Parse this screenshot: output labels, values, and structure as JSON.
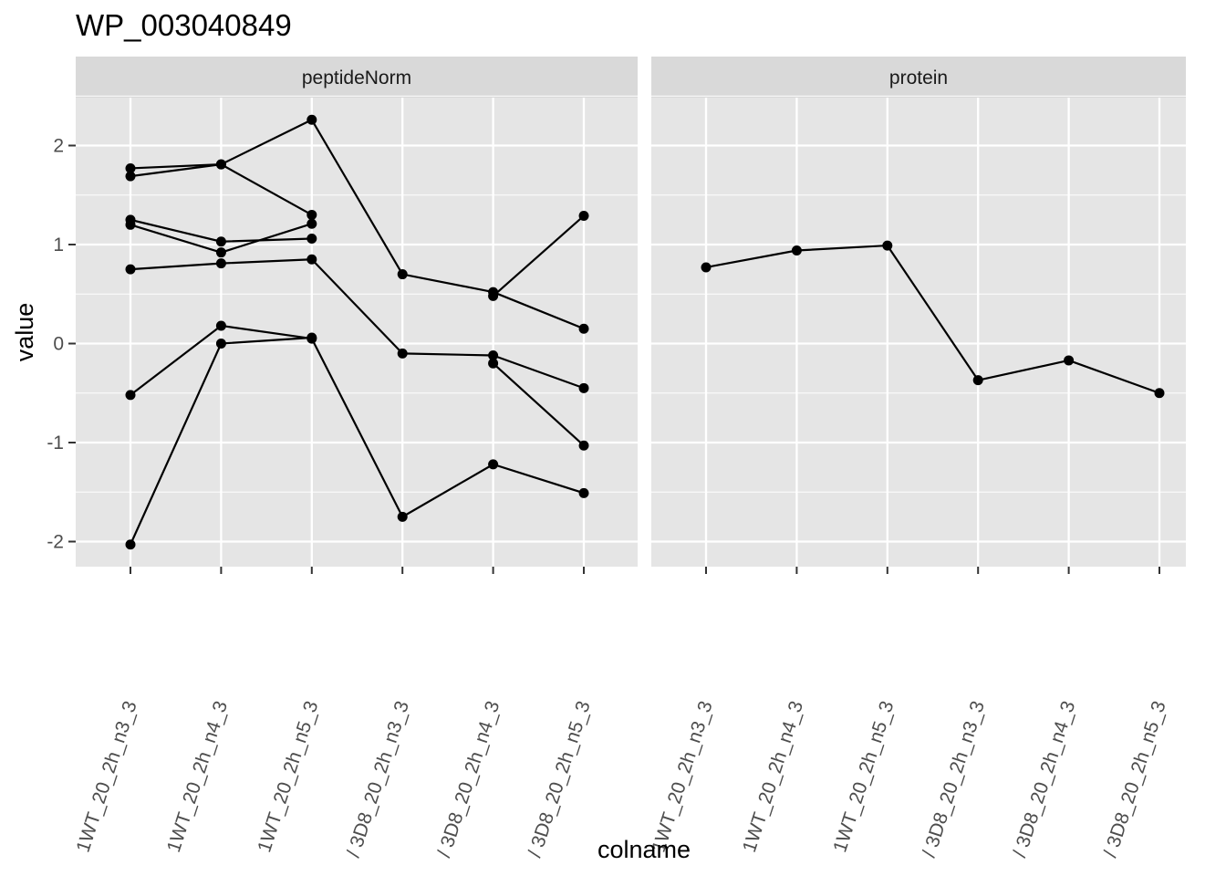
{
  "chart_data": {
    "type": "line",
    "title": "WP_003040849",
    "xlabel": "colname",
    "ylabel": "value",
    "ylim": [
      -2.25,
      2.5
    ],
    "y_ticks": [
      -2,
      -1,
      0,
      1,
      2
    ],
    "y_tick_labels": [
      "-2",
      "-1",
      "0",
      "1",
      "2"
    ],
    "grid": true,
    "legend": "none",
    "colors": {
      "panel_bg": "#e5e5e5",
      "strip_bg": "#d9d9d9",
      "grid": "#ffffff",
      "line": "#000000",
      "tick": "#333333"
    },
    "categories": [
      "1WT_20_2h_n3_3",
      "1WT_20_2h_n4_3",
      "1WT_20_2h_n5_3",
      "/ 3D8_20_2h_n3_3",
      "/ 3D8_20_2h_n4_3",
      "/ 3D8_20_2h_n5_3"
    ],
    "panels": [
      {
        "strip": "peptideNorm",
        "series": [
          {
            "values": [
              1.77,
              1.81,
              1.3,
              null,
              null,
              null
            ]
          },
          {
            "values": [
              1.69,
              1.81,
              2.26,
              0.7,
              0.52,
              0.15
            ]
          },
          {
            "values": [
              1.25,
              1.03,
              1.06,
              null,
              null,
              null
            ]
          },
          {
            "values": [
              1.2,
              0.92,
              1.21,
              null,
              null,
              null
            ]
          },
          {
            "values": [
              0.75,
              0.81,
              0.85,
              -0.1,
              -0.12,
              -0.45
            ]
          },
          {
            "values": [
              null,
              null,
              null,
              null,
              0.48,
              1.29
            ]
          },
          {
            "values": [
              null,
              null,
              null,
              null,
              -0.2,
              -1.03
            ]
          },
          {
            "values": [
              -0.52,
              0.18,
              0.05,
              -1.75,
              -1.22,
              -1.51
            ]
          },
          {
            "values": [
              -2.03,
              0.0,
              0.06,
              null,
              null,
              null
            ]
          }
        ]
      },
      {
        "strip": "protein",
        "series": [
          {
            "values": [
              0.77,
              0.94,
              0.99,
              -0.37,
              -0.17,
              -0.5
            ]
          }
        ]
      }
    ]
  }
}
